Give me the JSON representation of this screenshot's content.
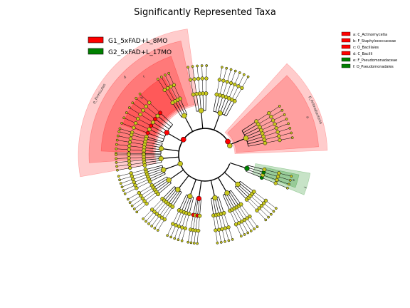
{
  "chart_data": {
    "type": "cladogram",
    "title": "Significantly Represented Taxa",
    "legend": [
      {
        "label": "G1_5xFAD+L_8MO",
        "color": "#ff0000"
      },
      {
        "label": "G2_5xFAD+L_17MO",
        "color": "#008000"
      }
    ],
    "biomarker_legend": [
      {
        "label": "a: C_Actinomycetia",
        "color": "#ff0000"
      },
      {
        "label": "b: F_Staphylococcaceae",
        "color": "#ff0000"
      },
      {
        "label": "c: O_Bacillales",
        "color": "#ff0000"
      },
      {
        "label": "d: C_Bacilli",
        "color": "#ff0000"
      },
      {
        "label": "e: F_Pseudomonadaceae",
        "color": "#008000"
      },
      {
        "label": "f: O_Pseudomonadales",
        "color": "#008000"
      }
    ],
    "clade_labels": [
      "p_Firmicutes",
      "p_Actinobacteria",
      "a",
      "b",
      "c",
      "d",
      "e",
      "f"
    ],
    "colors": {
      "enriched_g1": "#ff0000",
      "enriched_g2": "#008000",
      "neutral_node": "#c8c81e"
    }
  }
}
